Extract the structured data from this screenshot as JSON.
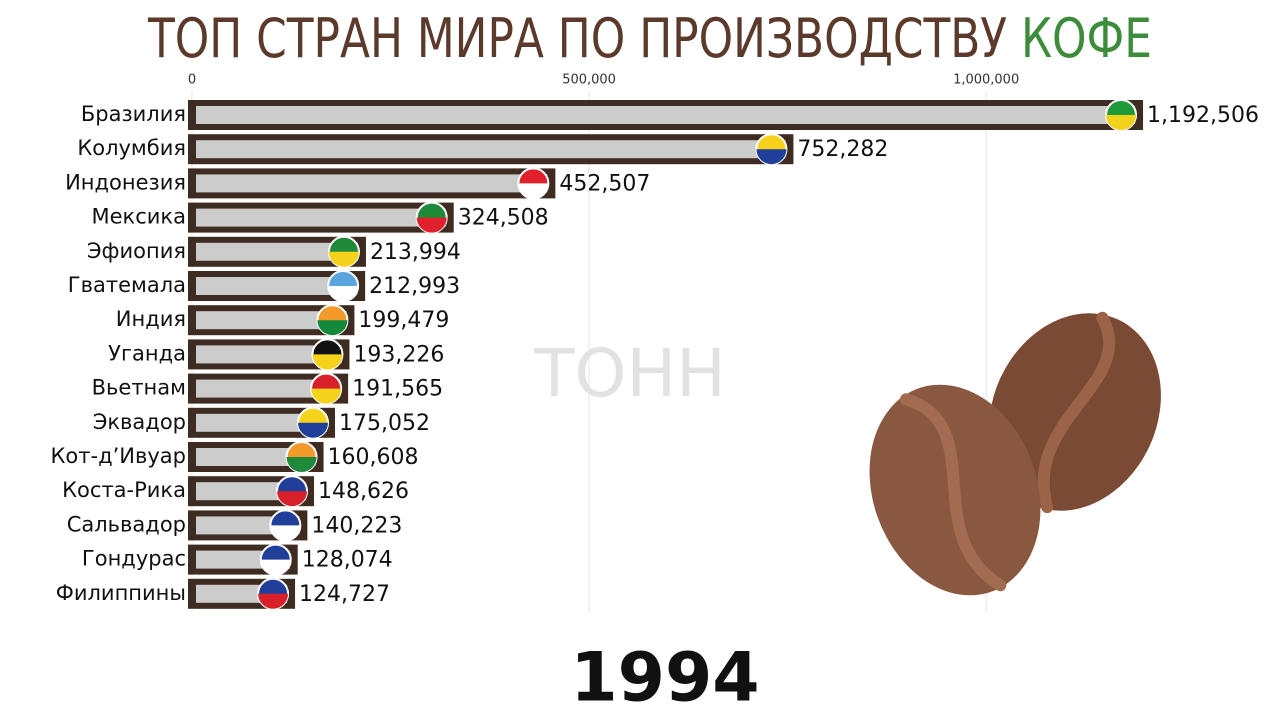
{
  "chart_data": {
    "type": "barh",
    "title": "ТОП СТРАН МИРА ПО ПРОИЗВОДСТВУ",
    "title_accent": "КОФЕ",
    "annotation": "ТОНН",
    "year": "1994",
    "categories": [
      "Бразилия",
      "Колумбия",
      "Индонезия",
      "Мексика",
      "Эфиопия",
      "Гватемала",
      "Индия",
      "Уганда",
      "Вьетнам",
      "Эквадор",
      "Кот-д’Ивуар",
      "Коста-Рика",
      "Сальвадор",
      "Гондурас",
      "Филиппины"
    ],
    "values": [
      1192506,
      752282,
      452507,
      324508,
      213994,
      212993,
      199479,
      193226,
      191565,
      175052,
      160608,
      148626,
      140223,
      128074,
      124727
    ],
    "value_labels": [
      "1,192,506",
      "752,282",
      "452,507",
      "324,508",
      "213,994",
      "212,993",
      "199,479",
      "193,226",
      "191,565",
      "175,052",
      "160,608",
      "148,626",
      "140,223",
      "128,074",
      "124,727"
    ],
    "color": "#cccccc",
    "xlim": [
      0,
      1370000
    ],
    "xticks": [
      0,
      {
        "value": 500000,
        "label": "500,000"
      },
      {
        "value": 1000000,
        "label": "1,000,000"
      }
    ],
    "grid": true
  }
}
